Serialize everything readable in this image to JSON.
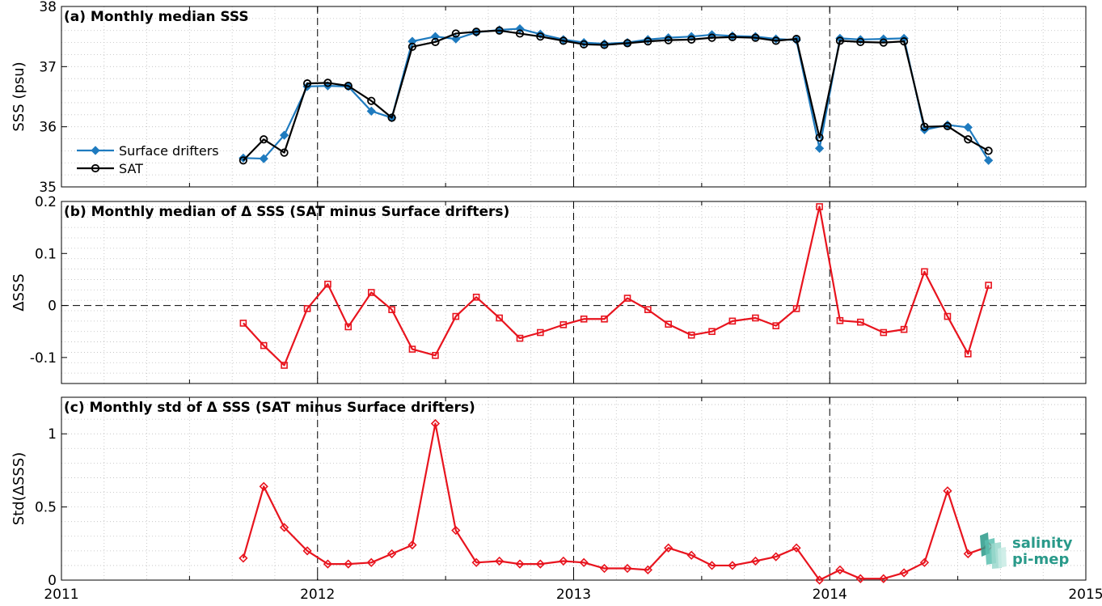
{
  "colors": {
    "drifters": "#1f7bbf",
    "sat": "#000000",
    "delta": "#e8141e",
    "grid": "#bdbdbd",
    "logo": "#2a9a8a"
  },
  "x_ticks": [
    "2011",
    "2012",
    "2013",
    "2014",
    "2015"
  ],
  "logo": {
    "line1": "salinity",
    "line2": "pi-mep"
  },
  "chart_data": [
    {
      "type": "line",
      "title": "(a) Monthly median SSS",
      "ylabel": "SSS (psu)",
      "ylim": [
        35,
        38
      ],
      "yticks": [
        35,
        36,
        37,
        38
      ],
      "yticklabels": [
        "35",
        "36",
        "37",
        "38"
      ],
      "xlim": [
        2011,
        2015
      ],
      "grid": true,
      "legend": "lower-left",
      "x": [
        2011.71,
        2011.79,
        2011.87,
        2011.96,
        2012.04,
        2012.12,
        2012.21,
        2012.29,
        2012.37,
        2012.46,
        2012.54,
        2012.62,
        2012.71,
        2012.79,
        2012.87,
        2012.96,
        2013.04,
        2013.12,
        2013.21,
        2013.29,
        2013.37,
        2013.46,
        2013.54,
        2013.62,
        2013.71,
        2013.79,
        2013.87,
        2013.96,
        2014.04,
        2014.12,
        2014.21,
        2014.29,
        2014.37,
        2014.46,
        2014.54,
        2014.62
      ],
      "series": [
        {
          "name": "Surface drifters",
          "color": "#1f7bbf",
          "marker": "diamond",
          "values": [
            35.48,
            35.47,
            35.86,
            36.67,
            36.68,
            36.67,
            36.26,
            36.15,
            37.42,
            37.5,
            37.46,
            37.57,
            37.61,
            37.63,
            37.54,
            37.45,
            37.4,
            37.38,
            37.4,
            37.45,
            37.48,
            37.5,
            37.53,
            37.51,
            37.5,
            37.46,
            37.44,
            35.64,
            37.47,
            37.45,
            37.46,
            37.47,
            35.95,
            36.03,
            35.99,
            35.44
          ]
        },
        {
          "name": "SAT",
          "color": "#000000",
          "marker": "circle",
          "values": [
            35.44,
            35.79,
            35.57,
            36.72,
            36.73,
            36.68,
            36.43,
            36.15,
            37.33,
            37.41,
            37.55,
            37.58,
            37.6,
            37.55,
            37.5,
            37.43,
            37.37,
            37.36,
            37.39,
            37.42,
            37.44,
            37.45,
            37.48,
            37.49,
            37.48,
            37.43,
            37.46,
            35.82,
            37.43,
            37.41,
            37.4,
            37.42,
            36.0,
            36.01,
            35.79,
            35.6
          ]
        }
      ]
    },
    {
      "type": "line",
      "title": "(b) Monthly median of Δ SSS (SAT minus Surface drifters)",
      "ylabel": "ΔSSS",
      "ylim": [
        -0.15,
        0.2
      ],
      "yticks": [
        -0.1,
        0,
        0.1,
        0.2
      ],
      "yticklabels": [
        "-0.1",
        "0",
        "0.1",
        "0.2"
      ],
      "xlim": [
        2011,
        2015
      ],
      "grid": true,
      "zero_line": true,
      "x": [
        2011.71,
        2011.79,
        2011.87,
        2011.96,
        2012.04,
        2012.12,
        2012.21,
        2012.29,
        2012.37,
        2012.46,
        2012.54,
        2012.62,
        2012.71,
        2012.79,
        2012.87,
        2012.96,
        2013.04,
        2013.12,
        2013.21,
        2013.29,
        2013.37,
        2013.46,
        2013.54,
        2013.62,
        2013.71,
        2013.79,
        2013.87,
        2013.96,
        2014.04,
        2014.12,
        2014.21,
        2014.29,
        2014.37,
        2014.46,
        2014.54,
        2014.62
      ],
      "series": [
        {
          "color": "#e8141e",
          "marker": "square",
          "values": [
            -0.034,
            -0.077,
            -0.115,
            -0.006,
            0.041,
            -0.041,
            0.025,
            -0.008,
            -0.084,
            -0.096,
            -0.021,
            0.016,
            -0.024,
            -0.063,
            -0.052,
            -0.037,
            -0.026,
            -0.026,
            0.014,
            -0.008,
            -0.036,
            -0.057,
            -0.05,
            -0.03,
            -0.024,
            -0.039,
            -0.006,
            0.19,
            -0.029,
            -0.032,
            -0.052,
            -0.046,
            0.065,
            -0.021,
            -0.093,
            0.039
          ]
        }
      ]
    },
    {
      "type": "line",
      "title": "(c) Monthly std of Δ SSS (SAT minus Surface drifters)",
      "ylabel": "Std(ΔSSS)",
      "ylim": [
        0,
        1.25
      ],
      "yticks": [
        0,
        0.5,
        1
      ],
      "yticklabels": [
        "0",
        "0.5",
        "1"
      ],
      "xlim": [
        2011,
        2015
      ],
      "grid": true,
      "x": [
        2011.71,
        2011.79,
        2011.87,
        2011.96,
        2012.04,
        2012.12,
        2012.21,
        2012.29,
        2012.37,
        2012.46,
        2012.54,
        2012.62,
        2012.71,
        2012.79,
        2012.87,
        2012.96,
        2013.04,
        2013.12,
        2013.21,
        2013.29,
        2013.37,
        2013.46,
        2013.54,
        2013.62,
        2013.71,
        2013.79,
        2013.87,
        2013.96,
        2014.04,
        2014.12,
        2014.21,
        2014.29,
        2014.37,
        2014.46,
        2014.54,
        2014.62
      ],
      "series": [
        {
          "color": "#e8141e",
          "marker": "diamond",
          "values": [
            0.15,
            0.64,
            0.36,
            0.2,
            0.11,
            0.11,
            0.12,
            0.18,
            0.24,
            1.07,
            0.34,
            0.12,
            0.13,
            0.11,
            0.11,
            0.13,
            0.12,
            0.08,
            0.08,
            0.07,
            0.22,
            0.17,
            0.1,
            0.1,
            0.13,
            0.16,
            0.22,
            0.0,
            0.07,
            0.01,
            0.01,
            0.05,
            0.12,
            0.61,
            0.18,
            0.23
          ]
        }
      ]
    }
  ]
}
